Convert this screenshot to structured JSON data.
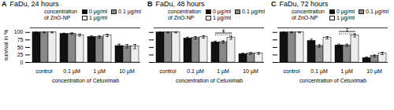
{
  "chart_data": [
    {
      "type": "bar",
      "panel_label": "A",
      "title": "FaDu, 24 hours",
      "xlabel": "concentration of Cetuximab",
      "ylabel": "survival in %",
      "categories": [
        "control",
        "0.1 µM",
        "1 µM",
        "10 µM"
      ],
      "series": [
        {
          "name": "0 µg/ml",
          "color": "#111111",
          "values": [
            100,
            95,
            85,
            55
          ],
          "errors": [
            1.5,
            2.5,
            3.5,
            6
          ]
        },
        {
          "name": "0.1 µg/ml",
          "color": "#888888",
          "values": [
            100,
            96,
            85,
            54
          ],
          "errors": [
            1.5,
            2.5,
            3.5,
            6
          ]
        },
        {
          "name": "1 µg/ml",
          "color": "#eeeeee",
          "values": [
            100,
            91,
            90,
            53
          ],
          "errors": [
            1.5,
            3.5,
            4,
            7
          ]
        }
      ],
      "ylim": [
        0,
        115
      ],
      "yticks": [
        0,
        25,
        50,
        75,
        100
      ],
      "grid": false,
      "legend": "upper right",
      "legend_title": "concentration\nof ZnO-NP"
    },
    {
      "type": "bar",
      "panel_label": "B",
      "title": "FaDu, 48 hours",
      "xlabel": "concentration of Cetuximab",
      "categories": [
        "control",
        "0.1 µM",
        "1 µM",
        "10 µM"
      ],
      "series": [
        {
          "name": "0 µg/ml",
          "color": "#111111",
          "values": [
            100,
            80,
            67,
            28
          ],
          "errors": [
            1.5,
            4,
            4,
            3
          ]
        },
        {
          "name": "0.1 µg/ml",
          "color": "#888888",
          "values": [
            100,
            82,
            68,
            30
          ],
          "errors": [
            1.5,
            4,
            4,
            3
          ]
        },
        {
          "name": "1 µg/ml",
          "color": "#eeeeee",
          "values": [
            100,
            85,
            82,
            30
          ],
          "errors": [
            1.5,
            4,
            5,
            3
          ]
        }
      ],
      "annotations": [
        {
          "text": "*",
          "category": "1 µM",
          "from": "0 µg/ml",
          "to": "1 µg/ml",
          "y": 98,
          "line_style": "solid"
        },
        {
          "text": "*",
          "category": "1 µM",
          "from": "0 µg/ml",
          "to": "1 µg/ml",
          "y": 92,
          "line_style": "dotted"
        }
      ],
      "ylim": [
        0,
        115
      ],
      "yticks": [
        0,
        25,
        50,
        75,
        100
      ],
      "grid": false,
      "tick_labels": "x",
      "legend": "upper right",
      "legend_title": "concentration\nof ZnO-NP"
    },
    {
      "type": "bar",
      "panel_label": "C",
      "title": "FaDu, 72 hours",
      "xlabel": "concentration of Cetuximab",
      "categories": [
        "control",
        "0.1 µM",
        "1 µM",
        "10 µM"
      ],
      "series": [
        {
          "name": "0 µg/ml",
          "color": "#111111",
          "values": [
            100,
            72,
            57,
            15
          ],
          "errors": [
            1.5,
            5,
            4,
            3
          ]
        },
        {
          "name": "0.1 µg/ml",
          "color": "#888888",
          "values": [
            100,
            55,
            57,
            22
          ],
          "errors": [
            1.5,
            4,
            4,
            3
          ]
        },
        {
          "name": "1 µg/ml",
          "color": "#eeeeee",
          "values": [
            100,
            82,
            90,
            30
          ],
          "errors": [
            1.5,
            4,
            5,
            4
          ]
        }
      ],
      "annotations": [
        {
          "text": "*",
          "category": "1 µM",
          "from": "0 µg/ml",
          "to": "1 µg/ml",
          "y": 103,
          "line_style": "solid"
        },
        {
          "text": "*",
          "category": "1 µM",
          "from": "0 µg/ml",
          "to": "1 µg/ml",
          "y": 95,
          "line_style": "dotted"
        }
      ],
      "ylim": [
        0,
        115
      ],
      "yticks": [
        0,
        25,
        50,
        75,
        100
      ],
      "grid": false,
      "tick_labels": "x",
      "legend": "upper right",
      "legend_title": "concentration\nof ZnO-NP"
    }
  ]
}
